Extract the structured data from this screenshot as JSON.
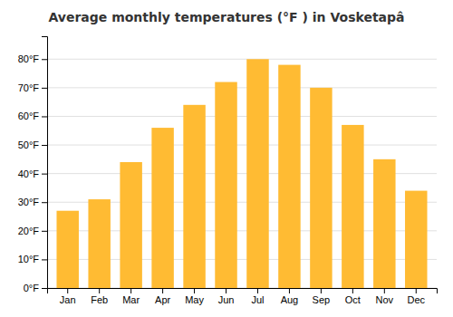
{
  "chart_data": {
    "type": "bar",
    "title": "Average monthly temperatures (°F ) in Vosketapâ",
    "categories": [
      "Jan",
      "Feb",
      "Mar",
      "Apr",
      "May",
      "Jun",
      "Jul",
      "Aug",
      "Sep",
      "Oct",
      "Nov",
      "Dec"
    ],
    "values": [
      27,
      31,
      44,
      56,
      64,
      72,
      80,
      78,
      70,
      57,
      45,
      34
    ],
    "color": "#FFBB33",
    "ylim": [
      0,
      88
    ],
    "yticks": [
      {
        "value": 0,
        "label": "0°F"
      },
      {
        "value": 10,
        "label": "10°F"
      },
      {
        "value": 20,
        "label": "20°F"
      },
      {
        "value": 30,
        "label": "30°F"
      },
      {
        "value": 40,
        "label": "40°F"
      },
      {
        "value": 50,
        "label": "50°F"
      },
      {
        "value": 60,
        "label": "60°F"
      },
      {
        "value": 70,
        "label": "70°F"
      },
      {
        "value": 80,
        "label": "80°F"
      }
    ],
    "grid": true
  }
}
